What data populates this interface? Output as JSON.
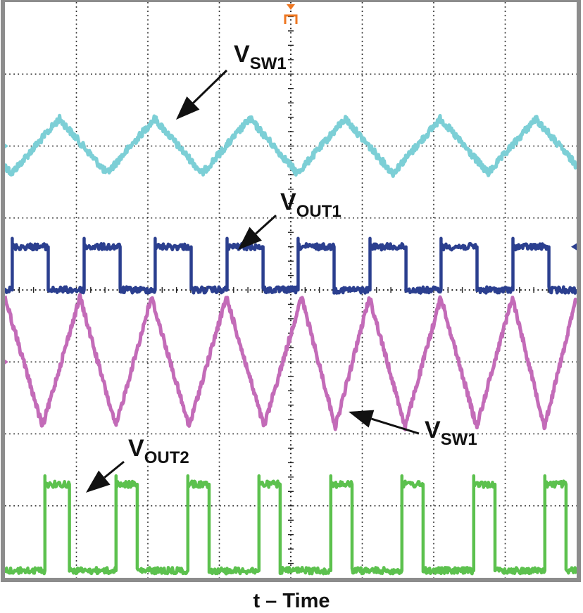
{
  "colors": {
    "background": "#ffffff",
    "frame": "#8c8c8c",
    "grid": "#222222",
    "trigger_marker": "#ee7722",
    "arrow": "#111111"
  },
  "chart_data": {
    "type": "line",
    "title": "",
    "xlabel": "t – Time",
    "ylabel": "",
    "grid": true,
    "grid_divisions": {
      "x": 8,
      "y": 8
    },
    "series": [
      {
        "name": "V_SW1",
        "color": "#7ccfd6",
        "waveform": "triangle",
        "cycles": 6,
        "center_div": 6.0,
        "amplitude_div": 0.38,
        "peak_positions_div": [
          0.76,
          1.94,
          3.6,
          5.22,
          6.6,
          7.74
        ]
      },
      {
        "name": "V_OUT1",
        "color": "#2b3f8f",
        "waveform": "square",
        "high_div": 4.6,
        "low_div": 4.0,
        "high_intervals_div": [
          [
            0.1,
            0.6
          ],
          [
            1.1,
            1.6
          ],
          [
            2.1,
            2.6
          ],
          [
            3.1,
            3.6
          ],
          [
            4.1,
            4.6
          ],
          [
            5.1,
            5.6
          ],
          [
            6.1,
            6.6
          ],
          [
            7.1,
            7.6
          ]
        ]
      },
      {
        "name": "V_SW1",
        "color": "#c36bb8",
        "waveform": "triangle",
        "center_div": 3.0,
        "amplitude_div": 0.9,
        "peak_positions_div": [
          0.0,
          1.05,
          2.05,
          3.1,
          4.15,
          5.1,
          6.1,
          7.1,
          8.0
        ]
      },
      {
        "name": "V_OUT2",
        "color": "#5cc14e",
        "waveform": "square",
        "high_div": 1.3,
        "low_div": 0.1,
        "high_intervals_div": [
          [
            0.55,
            0.9
          ],
          [
            1.55,
            1.85
          ],
          [
            2.55,
            2.85
          ],
          [
            3.55,
            3.85
          ],
          [
            4.55,
            4.85
          ],
          [
            5.55,
            5.85
          ],
          [
            6.55,
            6.85
          ],
          [
            7.55,
            7.85
          ]
        ]
      }
    ],
    "annotations": [
      {
        "main": "V",
        "sub": "SW1",
        "series_index": 0
      },
      {
        "main": "V",
        "sub": "OUT1",
        "series_index": 1
      },
      {
        "main": "V",
        "sub": "SW1",
        "series_index": 2
      },
      {
        "main": "V",
        "sub": "OUT2",
        "series_index": 3
      }
    ]
  }
}
